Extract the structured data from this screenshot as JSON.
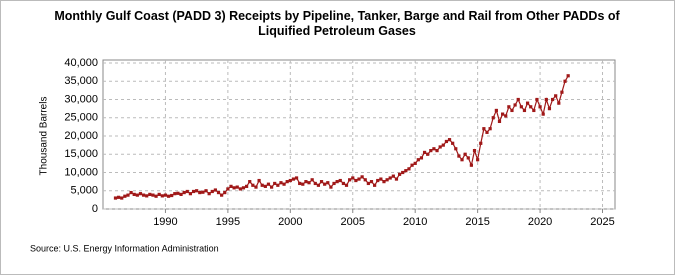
{
  "chart_data": {
    "type": "line",
    "title": "Monthly Gulf Coast (PADD 3) Receipts by Pipeline, Tanker, Barge and Rail from Other PADDs of Liquified Petroleum Gases",
    "ylabel": "Thousand Barrels",
    "source": "Source: U.S. Energy Information Administration",
    "xlim": [
      1985,
      2026
    ],
    "xticks": [
      1990,
      1995,
      2000,
      2005,
      2010,
      2015,
      2020,
      2025
    ],
    "ylim": [
      0,
      40000
    ],
    "yticks": [
      {
        "value": 0,
        "label": "0"
      },
      {
        "value": 5000,
        "label": "5,000"
      },
      {
        "value": 10000,
        "label": "10,000"
      },
      {
        "value": 15000,
        "label": "15,000"
      },
      {
        "value": 20000,
        "label": "20,000"
      },
      {
        "value": 25000,
        "label": "25,000"
      },
      {
        "value": 30000,
        "label": "30,000"
      },
      {
        "value": 35000,
        "label": "35,000"
      },
      {
        "value": 40000,
        "label": "40,000"
      }
    ],
    "grid": true,
    "x": [
      1986,
      1986.25,
      1986.5,
      1986.75,
      1987,
      1987.25,
      1987.5,
      1987.75,
      1988,
      1988.25,
      1988.5,
      1988.75,
      1989,
      1989.25,
      1989.5,
      1989.75,
      1990,
      1990.25,
      1990.5,
      1990.75,
      1991,
      1991.25,
      1991.5,
      1991.75,
      1992,
      1992.25,
      1992.5,
      1992.75,
      1993,
      1993.25,
      1993.5,
      1993.75,
      1994,
      1994.25,
      1994.5,
      1994.75,
      1995,
      1995.25,
      1995.5,
      1995.75,
      1996,
      1996.25,
      1996.5,
      1996.75,
      1997,
      1997.25,
      1997.5,
      1997.75,
      1998,
      1998.25,
      1998.5,
      1998.75,
      1999,
      1999.25,
      1999.5,
      1999.75,
      2000,
      2000.25,
      2000.5,
      2000.75,
      2001,
      2001.25,
      2001.5,
      2001.75,
      2002,
      2002.25,
      2002.5,
      2002.75,
      2003,
      2003.25,
      2003.5,
      2003.75,
      2004,
      2004.25,
      2004.5,
      2004.75,
      2005,
      2005.25,
      2005.5,
      2005.75,
      2006,
      2006.25,
      2006.5,
      2006.75,
      2007,
      2007.25,
      2007.5,
      2007.75,
      2008,
      2008.25,
      2008.5,
      2008.75,
      2009,
      2009.25,
      2009.5,
      2009.75,
      2010,
      2010.25,
      2010.5,
      2010.75,
      2011,
      2011.25,
      2011.5,
      2011.75,
      2012,
      2012.25,
      2012.5,
      2012.75,
      2013,
      2013.25,
      2013.5,
      2013.75,
      2014,
      2014.25,
      2014.5,
      2014.75,
      2015,
      2015.25,
      2015.5,
      2015.75,
      2016,
      2016.25,
      2016.5,
      2016.75,
      2017,
      2017.25,
      2017.5,
      2017.75,
      2018,
      2018.25,
      2018.5,
      2018.75,
      2019,
      2019.25,
      2019.5,
      2019.75,
      2020,
      2020.25,
      2020.5,
      2020.75,
      2021,
      2021.25,
      2021.5,
      2021.75,
      2022,
      2022.25
    ],
    "series": [
      {
        "color": "#a01818",
        "values": [
          3000,
          3200,
          3000,
          3500,
          3800,
          4500,
          4000,
          3800,
          4200,
          3800,
          3600,
          4000,
          3800,
          3500,
          4000,
          3600,
          3800,
          3500,
          3700,
          4200,
          4300,
          4000,
          4500,
          4800,
          4200,
          4800,
          5000,
          4500,
          4600,
          5000,
          4200,
          4800,
          5200,
          4500,
          3800,
          4500,
          5500,
          6200,
          5800,
          6000,
          5500,
          5800,
          6200,
          7500,
          6500,
          6000,
          7800,
          6500,
          6200,
          6800,
          6000,
          7000,
          6500,
          7200,
          6800,
          7500,
          7800,
          8200,
          8500,
          7000,
          6800,
          7500,
          7200,
          8000,
          7000,
          6500,
          7500,
          6800,
          7200,
          6000,
          7000,
          7500,
          7800,
          7000,
          6500,
          8000,
          8500,
          7800,
          8200,
          8800,
          8000,
          7000,
          7500,
          6500,
          7800,
          8200,
          7500,
          8000,
          8500,
          9000,
          8200,
          9500,
          10000,
          10500,
          11000,
          12000,
          12500,
          13500,
          14000,
          15500,
          15000,
          16000,
          16500,
          16000,
          17000,
          17500,
          18500,
          19000,
          18000,
          16500,
          14500,
          13500,
          15000,
          14000,
          12000,
          16000,
          13500,
          18000,
          22000,
          21000,
          22000,
          25000,
          27000,
          24000,
          26000,
          25500,
          28000,
          27000,
          28500,
          30000,
          28000,
          27000,
          29000,
          28000,
          27000,
          30000,
          28000,
          26000,
          30000,
          27500,
          30000,
          31000,
          29000,
          32000,
          35000,
          36500
        ]
      }
    ]
  }
}
